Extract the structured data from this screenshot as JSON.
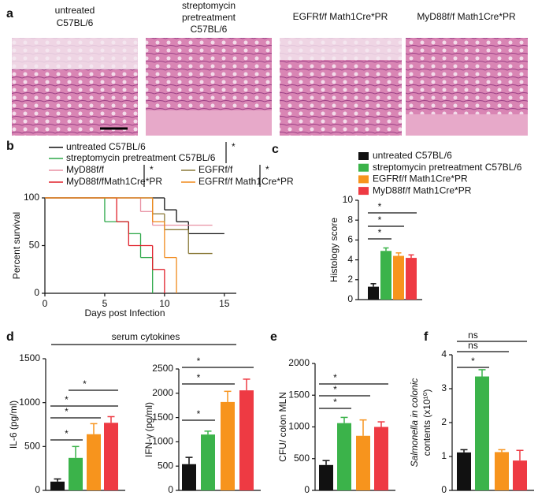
{
  "figure": {
    "panel_labels": [
      "a",
      "b",
      "c",
      "d",
      "e",
      "f"
    ],
    "histology_captions": [
      [
        "untreated",
        "C57BL/6"
      ],
      [
        "streptomycin",
        "pretreatment",
        "C57BL/6"
      ],
      [
        "EGFRf/f Math1Cre*PR"
      ],
      [
        "MyD88f/f Math1Cre*PR"
      ]
    ],
    "group_label": "serum cytokines"
  },
  "chart_data": [
    {
      "type": "step",
      "xlabel": "Days post Infection",
      "ylabel": "Percent survival",
      "xlim": [
        0,
        16
      ],
      "ylim": [
        0,
        100
      ],
      "xticks": [
        0,
        5,
        10,
        15
      ],
      "yticks": [
        0,
        50,
        100
      ],
      "series": [
        {
          "name": "untreated C57BL/6",
          "color": "#111111",
          "x": [
            0,
            10,
            11,
            12,
            15
          ],
          "values": [
            100,
            87.5,
            75,
            62.5,
            62.5
          ]
        },
        {
          "name": "streptomycin pretreatment C57BL/6",
          "color": "#2ea84a",
          "x": [
            0,
            5,
            7,
            8,
            9
          ],
          "values": [
            100,
            75,
            62.5,
            37.5,
            0
          ]
        },
        {
          "name": "MyD88f/f",
          "color": "#e891a3",
          "x": [
            0,
            8,
            9,
            14
          ],
          "values": [
            100,
            85.7,
            71.4,
            71.4
          ]
        },
        {
          "name": "MyD88f/fMath1Cre*PR",
          "color": "#e0202a",
          "x": [
            0,
            6,
            7,
            9,
            10
          ],
          "values": [
            100,
            75,
            50,
            25,
            0
          ]
        },
        {
          "name": "EGFRf/f",
          "color": "#8b7a3a",
          "x": [
            0,
            9,
            10,
            12,
            14
          ],
          "values": [
            100,
            83.3,
            66.7,
            41.7,
            41.7
          ]
        },
        {
          "name": "EGFRf/f Math1Cre*PR",
          "color": "#f08a1c",
          "x": [
            0,
            9,
            10,
            11
          ],
          "values": [
            100,
            75,
            37.5,
            0
          ]
        }
      ],
      "annotations": [
        "*",
        "*",
        "*"
      ]
    },
    {
      "type": "bar",
      "ylabel": "Histology score",
      "legend": true,
      "categories": [
        "untreated C57BL/6",
        "streptomycin pretreatment C57BL/6",
        "EGFRf/f Math1Cre*PR",
        "MyD88f/f Math1Cre*PR"
      ],
      "values": [
        1.3,
        4.9,
        4.4,
        4.2
      ],
      "errors": [
        0.3,
        0.3,
        0.3,
        0.3
      ],
      "colors": [
        "#111111",
        "#3bb34a",
        "#f7941d",
        "#ee3a43"
      ],
      "ylim": [
        0,
        10
      ],
      "yticks": [
        0,
        2,
        4,
        6,
        8,
        10
      ],
      "annotations": [
        "*",
        "*",
        "*"
      ]
    },
    {
      "type": "bar",
      "ylabel": "IL-6 (pg/ml)",
      "categories": [
        null,
        null,
        null,
        null
      ],
      "values": [
        100,
        370,
        640,
        770
      ],
      "errors": [
        30,
        130,
        120,
        70
      ],
      "colors": [
        "#111111",
        "#3bb34a",
        "#f7941d",
        "#ee3a43"
      ],
      "ylim": [
        0,
        1500
      ],
      "yticks": [
        0,
        500,
        1000,
        1500
      ],
      "annotations": [
        "*",
        "*",
        "*",
        "*"
      ]
    },
    {
      "type": "bar",
      "ylabel": "IFN-γ (pg/ml)",
      "categories": [
        null,
        null,
        null,
        null
      ],
      "values": [
        540,
        1150,
        1820,
        2060
      ],
      "errors": [
        140,
        70,
        220,
        230
      ],
      "colors": [
        "#111111",
        "#3bb34a",
        "#f7941d",
        "#ee3a43"
      ],
      "ylim": [
        0,
        2500
      ],
      "yticks": [
        0,
        500,
        1000,
        1500,
        2000,
        2500
      ],
      "annotations": [
        "*",
        "*",
        "*"
      ]
    },
    {
      "type": "bar",
      "ylabel": "CFU/ colon MLN",
      "categories": [
        null,
        null,
        null,
        null
      ],
      "values": [
        400,
        1060,
        860,
        1000
      ],
      "errors": [
        70,
        90,
        250,
        80
      ],
      "colors": [
        "#111111",
        "#3bb34a",
        "#f7941d",
        "#ee3a43"
      ],
      "ylim": [
        0,
        2000
      ],
      "yticks": [
        0,
        500,
        1000,
        1500,
        2000
      ],
      "annotations": [
        "*",
        "*",
        "*"
      ]
    },
    {
      "type": "bar",
      "ylabel": [
        "Salmonella in colonic",
        "contents (x10¹⁰)"
      ],
      "categories": [
        null,
        null,
        null,
        null
      ],
      "values": [
        1.12,
        3.36,
        1.13,
        0.88
      ],
      "errors": [
        0.08,
        0.2,
        0.07,
        0.3
      ],
      "colors": [
        "#111111",
        "#3bb34a",
        "#f7941d",
        "#ee3a43"
      ],
      "ylim": [
        0,
        4
      ],
      "yticks": [
        0,
        1,
        2,
        3,
        4
      ],
      "annotations": [
        "*",
        "ns",
        "ns"
      ]
    }
  ]
}
